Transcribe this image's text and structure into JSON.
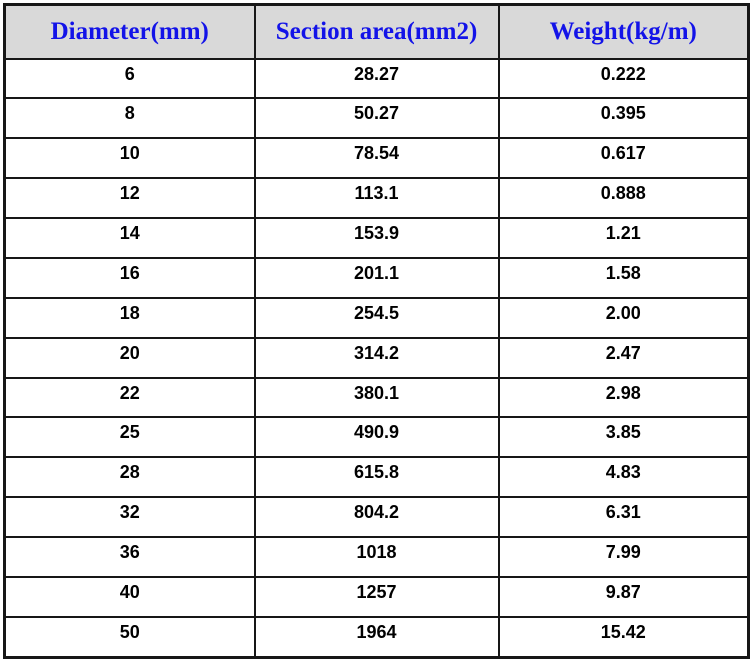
{
  "colors": {
    "header_bg": "#d9d9d9",
    "header_text": "#1313e8",
    "border": "#171717",
    "body_text": "#000000",
    "page_bg": "#ffffff"
  },
  "chart_data": {
    "type": "table",
    "columns": [
      "Diameter(mm)",
      "Section area(mm2)",
      "Weight(kg/m)"
    ],
    "rows": [
      [
        "6",
        "28.27",
        "0.222"
      ],
      [
        "8",
        "50.27",
        "0.395"
      ],
      [
        "10",
        "78.54",
        "0.617"
      ],
      [
        "12",
        "113.1",
        "0.888"
      ],
      [
        "14",
        "153.9",
        "1.21"
      ],
      [
        "16",
        "201.1",
        "1.58"
      ],
      [
        "18",
        "254.5",
        "2.00"
      ],
      [
        "20",
        "314.2",
        "2.47"
      ],
      [
        "22",
        "380.1",
        "2.98"
      ],
      [
        "25",
        "490.9",
        "3.85"
      ],
      [
        "28",
        "615.8",
        "4.83"
      ],
      [
        "32",
        "804.2",
        "6.31"
      ],
      [
        "36",
        "1018",
        "7.99"
      ],
      [
        "40",
        "1257",
        "9.87"
      ],
      [
        "50",
        "1964",
        "15.42"
      ]
    ],
    "layout": {
      "grid": true,
      "header_row": true,
      "column_alignment": [
        "center",
        "center",
        "center"
      ]
    }
  }
}
